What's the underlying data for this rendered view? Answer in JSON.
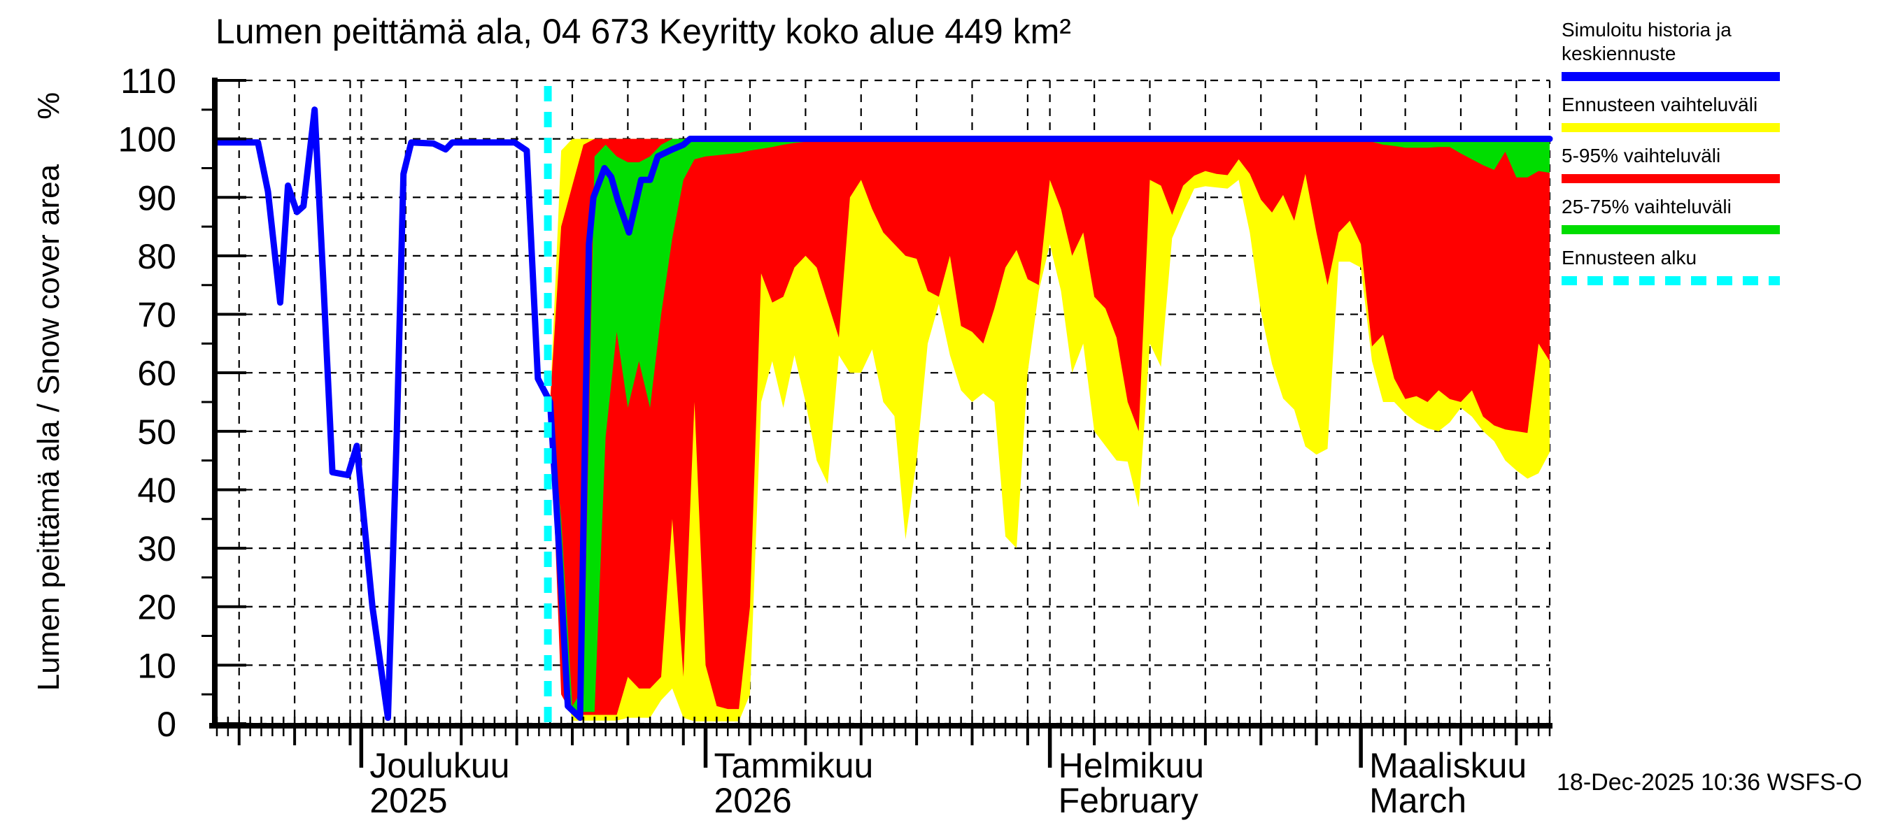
{
  "title_text": "Lumen peittämä ala, 04 673 Keyritty koko alue 449 km²",
  "timestamp": "18-Dec-2025 10:36 WSFS-O",
  "y_axis": {
    "label": "Lumen peittämä ala / Snow cover area",
    "unit": "%"
  },
  "legend": {
    "items": [
      {
        "label": "Simuloitu historia ja keskiennuste",
        "color": "#0000ff",
        "style": "solid"
      },
      {
        "label": "Ennusteen vaihteluväli",
        "color": "#ffff00",
        "style": "solid"
      },
      {
        "label": "5-95% vaihteluväli",
        "color": "#ff0000",
        "style": "solid"
      },
      {
        "label": "25-75% vaihteluväli",
        "color": "#00dd00",
        "style": "solid"
      },
      {
        "label": "Ennusteen alku",
        "color": "#00ffff",
        "style": "dashed"
      }
    ]
  },
  "chart_data": {
    "type": "area",
    "title": "Lumen peittämä ala, 04 673 Keyritty koko alue 449 km²",
    "ylabel": "Lumen peittämä ala / Snow cover area",
    "yunit": "%",
    "ylim": [
      0,
      110
    ],
    "ytick_step": 10,
    "x_start_date": "2025-11-18",
    "x_end_date": "2026-03-18",
    "x_days_total": 120,
    "forecast_start_day": 29.8,
    "forecast_start_label": "18-Dec-2025",
    "months": [
      {
        "day": 13,
        "name": "Joulukuu",
        "sub": "2025"
      },
      {
        "day": 44,
        "name": "Tammikuu",
        "sub": "2026"
      },
      {
        "day": 75,
        "name": "Helmikuu",
        "sub": "February"
      },
      {
        "day": 103,
        "name": "Maaliskuu",
        "sub": "March"
      }
    ],
    "grid_days": [
      2,
      7,
      12,
      13,
      17,
      22,
      27,
      32,
      37,
      42,
      44,
      48,
      53,
      58,
      63,
      68,
      73,
      75,
      79,
      84,
      89,
      94,
      99,
      103,
      107,
      112,
      117,
      120
    ],
    "medium_tick_days": [
      2,
      7,
      12,
      17,
      22,
      27,
      32,
      37,
      42,
      48,
      53,
      58,
      63,
      68,
      73,
      79,
      84,
      89,
      94,
      99,
      107,
      112,
      117
    ],
    "history": [
      [
        0,
        99.4
      ],
      [
        3.7,
        99.4
      ],
      [
        4.6,
        91
      ],
      [
        5.7,
        72
      ],
      [
        6.4,
        92
      ],
      [
        7.2,
        87.5
      ],
      [
        7.8,
        88.5
      ],
      [
        8.8,
        105
      ],
      [
        9.6,
        75
      ],
      [
        10.4,
        43
      ],
      [
        11.8,
        42.5
      ],
      [
        12.6,
        47.5
      ],
      [
        14,
        20
      ],
      [
        15.4,
        1
      ],
      [
        16.2,
        50
      ],
      [
        16.8,
        94
      ],
      [
        17.5,
        99.4
      ],
      [
        19.5,
        99.2
      ],
      [
        20.6,
        98.2
      ],
      [
        21.2,
        99.4
      ],
      [
        26.8,
        99.4
      ],
      [
        27.9,
        98
      ],
      [
        28.9,
        59
      ],
      [
        30,
        55
      ]
    ],
    "median_forecast": [
      [
        30,
        55
      ],
      [
        30.8,
        30
      ],
      [
        31.6,
        3
      ],
      [
        32.7,
        1
      ],
      [
        33.2,
        55
      ],
      [
        33.5,
        82
      ],
      [
        33.9,
        90
      ],
      [
        34.9,
        95
      ],
      [
        35.5,
        93.5
      ],
      [
        36.1,
        89.5
      ],
      [
        37.1,
        84
      ],
      [
        38.2,
        93
      ],
      [
        39,
        93
      ],
      [
        39.7,
        97
      ],
      [
        41,
        98.2
      ],
      [
        42,
        99
      ],
      [
        42.6,
        100
      ],
      [
        120,
        100
      ]
    ],
    "bands": {
      "t": [
        30,
        31,
        32,
        33,
        34,
        35,
        36,
        37,
        38,
        39,
        40,
        41,
        42,
        43,
        44,
        45,
        46,
        47,
        48,
        49,
        50,
        51,
        52,
        53,
        54,
        55,
        56,
        57,
        58,
        59,
        60,
        61,
        62,
        63,
        64,
        65,
        66,
        67,
        68,
        69,
        70,
        71,
        72,
        73,
        74,
        75,
        76,
        77,
        78,
        79,
        80,
        81,
        82,
        83,
        84,
        85,
        86,
        87,
        88,
        89,
        90,
        91,
        92,
        93,
        94,
        95,
        96,
        97,
        98,
        99,
        100,
        101,
        102,
        103,
        104,
        105,
        106,
        107,
        108,
        109,
        110,
        111,
        112,
        113,
        114,
        115,
        116,
        117,
        118,
        119,
        120
      ],
      "min": [
        55,
        10,
        0.5,
        0.5,
        0.5,
        0.5,
        0.5,
        1,
        1,
        1,
        4,
        6,
        1,
        0.4,
        0.4,
        0.4,
        0.4,
        0.4,
        5,
        55,
        62,
        54,
        63,
        55,
        45,
        41,
        63,
        60,
        60,
        64,
        55,
        52.6,
        31.5,
        45,
        65,
        71.8,
        63,
        57,
        55,
        56.5,
        55,
        32,
        30,
        60,
        74,
        82,
        74,
        60,
        65,
        50,
        47.5,
        45,
        44.8,
        37,
        65,
        61,
        83,
        87.4,
        91.5,
        91.9,
        91.7,
        91.5,
        93,
        84,
        70.4,
        61.5,
        55.6,
        53.7,
        47.4,
        46,
        47,
        79,
        79,
        78,
        62,
        55,
        55,
        53,
        51.5,
        50.5,
        50,
        51.5,
        54,
        52.5,
        50,
        48.3,
        45,
        43.3,
        41.9,
        42.8,
        46.4
      ],
      "p5": [
        55,
        5,
        1.5,
        1.5,
        1.5,
        1.5,
        1.5,
        8,
        6,
        6,
        8,
        35,
        8,
        55,
        10,
        3,
        2.5,
        2.5,
        20,
        77,
        72,
        73,
        78,
        80,
        78,
        72,
        66,
        90,
        93,
        88,
        84,
        82,
        80,
        79.5,
        74,
        73,
        80,
        68,
        67,
        65,
        71,
        78,
        81,
        76,
        75,
        93,
        88,
        80,
        84,
        73,
        71,
        66,
        55,
        50,
        93,
        92,
        87,
        92,
        93.7,
        94.5,
        94,
        93.8,
        96.5,
        94,
        89.6,
        87.4,
        90.4,
        86,
        94,
        84,
        75,
        84,
        86,
        82,
        64.5,
        66.5,
        59,
        55.5,
        56,
        55,
        57,
        55.5,
        55,
        57,
        52.5,
        51,
        50.3,
        50,
        49.7,
        65,
        62
      ],
      "p25": [
        55,
        20,
        1.5,
        2,
        2,
        49,
        67,
        54,
        62,
        54,
        70,
        83,
        93,
        96.5,
        97,
        97.2,
        97.4,
        97.6,
        98,
        98.3,
        98.6,
        99,
        99.3,
        99.5,
        99.5,
        99.5,
        99.5,
        99.5,
        99.5,
        99.5,
        99.5,
        99.5,
        99.5,
        99.5,
        99.5,
        99.5,
        99.5,
        99.5,
        99.5,
        99.5,
        99.5,
        99.5,
        99.5,
        99.5,
        99.5,
        99.5,
        99.5,
        99.5,
        99.5,
        99.5,
        99.5,
        99.5,
        99.5,
        99.5,
        99.5,
        99.5,
        99.5,
        99.5,
        99.5,
        99.5,
        99.5,
        99.5,
        99.5,
        99.5,
        99.5,
        99.5,
        99.5,
        99.5,
        99.5,
        99.5,
        99.5,
        99.5,
        99.5,
        99.5,
        99.5,
        99,
        98.8,
        98.5,
        98.5,
        98.5,
        98.6,
        98.6,
        97.5,
        96.5,
        95.5,
        94.7,
        97.8,
        93.4,
        93.4,
        94.5,
        94.2
      ],
      "p75": [
        55,
        35,
        3,
        6,
        97,
        99,
        97,
        96,
        96,
        97,
        99,
        100,
        100,
        100,
        100,
        100,
        100,
        100,
        100,
        100,
        100,
        100,
        100,
        100,
        100,
        100,
        100,
        100,
        100,
        100,
        100,
        100,
        100,
        100,
        100,
        100,
        100,
        100,
        100,
        100,
        100,
        100,
        100,
        100,
        100,
        100,
        100,
        100,
        100,
        100,
        100,
        100,
        100,
        100,
        100,
        100,
        100,
        100,
        100,
        100,
        100,
        100,
        100,
        100,
        100,
        100,
        100,
        100,
        100,
        100,
        100,
        100,
        100,
        100,
        100,
        100,
        100,
        100,
        100,
        100,
        100,
        100,
        100,
        100,
        100,
        100,
        100,
        100,
        100,
        100,
        100
      ],
      "p95": [
        55,
        85,
        92,
        99,
        100,
        100,
        100,
        100,
        100,
        100,
        100,
        100,
        100,
        100,
        100,
        100,
        100,
        100,
        100,
        100,
        100,
        100,
        100,
        100,
        100,
        100,
        100,
        100,
        100,
        100,
        100,
        100,
        100,
        100,
        100,
        100,
        100,
        100,
        100,
        100,
        100,
        100,
        100,
        100,
        100,
        100,
        100,
        100,
        100,
        100,
        100,
        100,
        100,
        100,
        100,
        100,
        100,
        100,
        100,
        100,
        100,
        100,
        100,
        100,
        100,
        100,
        100,
        100,
        100,
        100,
        100,
        100,
        100,
        100,
        100,
        100,
        100,
        100,
        100,
        100,
        100,
        100,
        100,
        100,
        100,
        100,
        100,
        100,
        100,
        100,
        100
      ],
      "max": [
        55,
        98,
        100,
        100,
        100,
        100,
        100,
        100,
        100,
        100,
        100,
        100,
        100,
        100,
        100,
        100,
        100,
        100,
        100,
        100,
        100,
        100,
        100,
        100,
        100,
        100,
        100,
        100,
        100,
        100,
        100,
        100,
        100,
        100,
        100,
        100,
        100,
        100,
        100,
        100,
        100,
        100,
        100,
        100,
        100,
        100,
        100,
        100,
        100,
        100,
        100,
        100,
        100,
        100,
        100,
        100,
        100,
        100,
        100,
        100,
        100,
        100,
        100,
        100,
        100,
        100,
        100,
        100,
        100,
        100,
        100,
        100,
        100,
        100,
        100,
        100,
        100,
        100,
        100,
        100,
        100,
        100,
        100,
        100,
        100,
        100,
        100,
        100,
        100,
        100,
        100
      ]
    },
    "colors": {
      "history_median": "#0000ff",
      "range_band": "#ffff00",
      "p5_95_band": "#ff0000",
      "p25_75_band": "#00dd00",
      "forecast_start": "#00ffff",
      "grid": "#000000"
    },
    "legend_position": "top-right",
    "grid": true
  }
}
